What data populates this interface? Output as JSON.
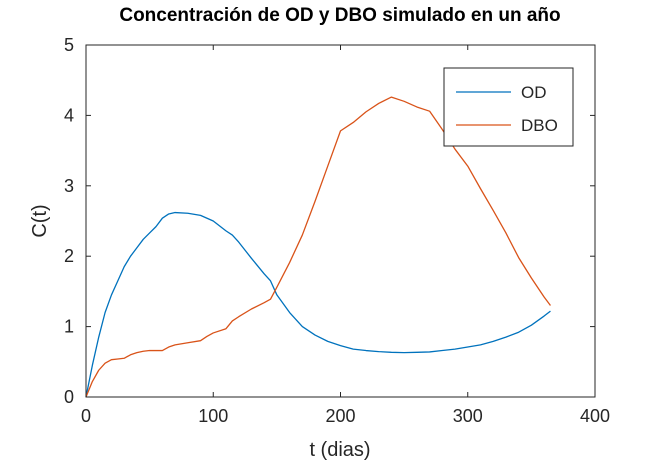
{
  "chart_data": {
    "type": "line",
    "title": "Concentración de OD y DBO simulado en un año",
    "xlabel": "t (dias)",
    "ylabel": "C(t)",
    "xlim": [
      0,
      400
    ],
    "ylim": [
      0,
      5
    ],
    "xticks": [
      0,
      100,
      200,
      300,
      400
    ],
    "yticks": [
      0,
      1,
      2,
      3,
      4,
      5
    ],
    "grid": false,
    "legend_position": "top-right",
    "series": [
      {
        "name": "OD",
        "color": "#0072BD",
        "points": [
          [
            0,
            0
          ],
          [
            5,
            0.45
          ],
          [
            10,
            0.85
          ],
          [
            15,
            1.2
          ],
          [
            20,
            1.45
          ],
          [
            25,
            1.65
          ],
          [
            30,
            1.85
          ],
          [
            35,
            2.0
          ],
          [
            40,
            2.12
          ],
          [
            45,
            2.24
          ],
          [
            50,
            2.33
          ],
          [
            55,
            2.42
          ],
          [
            60,
            2.54
          ],
          [
            65,
            2.6
          ],
          [
            70,
            2.62
          ],
          [
            80,
            2.61
          ],
          [
            90,
            2.58
          ],
          [
            100,
            2.5
          ],
          [
            110,
            2.36
          ],
          [
            115,
            2.3
          ],
          [
            120,
            2.2
          ],
          [
            130,
            1.97
          ],
          [
            140,
            1.75
          ],
          [
            145,
            1.65
          ],
          [
            150,
            1.45
          ],
          [
            160,
            1.2
          ],
          [
            170,
            1.0
          ],
          [
            180,
            0.88
          ],
          [
            190,
            0.79
          ],
          [
            200,
            0.73
          ],
          [
            210,
            0.68
          ],
          [
            220,
            0.66
          ],
          [
            230,
            0.645
          ],
          [
            240,
            0.635
          ],
          [
            250,
            0.63
          ],
          [
            260,
            0.635
          ],
          [
            270,
            0.64
          ],
          [
            280,
            0.66
          ],
          [
            290,
            0.68
          ],
          [
            300,
            0.71
          ],
          [
            310,
            0.74
          ],
          [
            320,
            0.79
          ],
          [
            330,
            0.85
          ],
          [
            340,
            0.92
          ],
          [
            350,
            1.02
          ],
          [
            360,
            1.15
          ],
          [
            365,
            1.22
          ]
        ]
      },
      {
        "name": "DBO",
        "color": "#D95319",
        "points": [
          [
            0,
            0
          ],
          [
            5,
            0.22
          ],
          [
            10,
            0.38
          ],
          [
            15,
            0.48
          ],
          [
            20,
            0.53
          ],
          [
            25,
            0.54
          ],
          [
            30,
            0.55
          ],
          [
            35,
            0.6
          ],
          [
            40,
            0.63
          ],
          [
            45,
            0.65
          ],
          [
            50,
            0.66
          ],
          [
            55,
            0.66
          ],
          [
            60,
            0.66
          ],
          [
            65,
            0.71
          ],
          [
            70,
            0.74
          ],
          [
            80,
            0.77
          ],
          [
            90,
            0.8
          ],
          [
            95,
            0.86
          ],
          [
            100,
            0.91
          ],
          [
            110,
            0.97
          ],
          [
            115,
            1.08
          ],
          [
            120,
            1.14
          ],
          [
            130,
            1.25
          ],
          [
            140,
            1.34
          ],
          [
            145,
            1.39
          ],
          [
            150,
            1.56
          ],
          [
            160,
            1.91
          ],
          [
            170,
            2.3
          ],
          [
            180,
            2.78
          ],
          [
            190,
            3.28
          ],
          [
            200,
            3.78
          ],
          [
            210,
            3.9
          ],
          [
            220,
            4.05
          ],
          [
            230,
            4.17
          ],
          [
            240,
            4.26
          ],
          [
            250,
            4.2
          ],
          [
            260,
            4.12
          ],
          [
            270,
            4.06
          ],
          [
            280,
            3.8
          ],
          [
            290,
            3.52
          ],
          [
            300,
            3.28
          ],
          [
            310,
            2.96
          ],
          [
            320,
            2.65
          ],
          [
            330,
            2.33
          ],
          [
            340,
            1.98
          ],
          [
            350,
            1.69
          ],
          [
            360,
            1.42
          ],
          [
            365,
            1.3
          ]
        ]
      }
    ]
  }
}
